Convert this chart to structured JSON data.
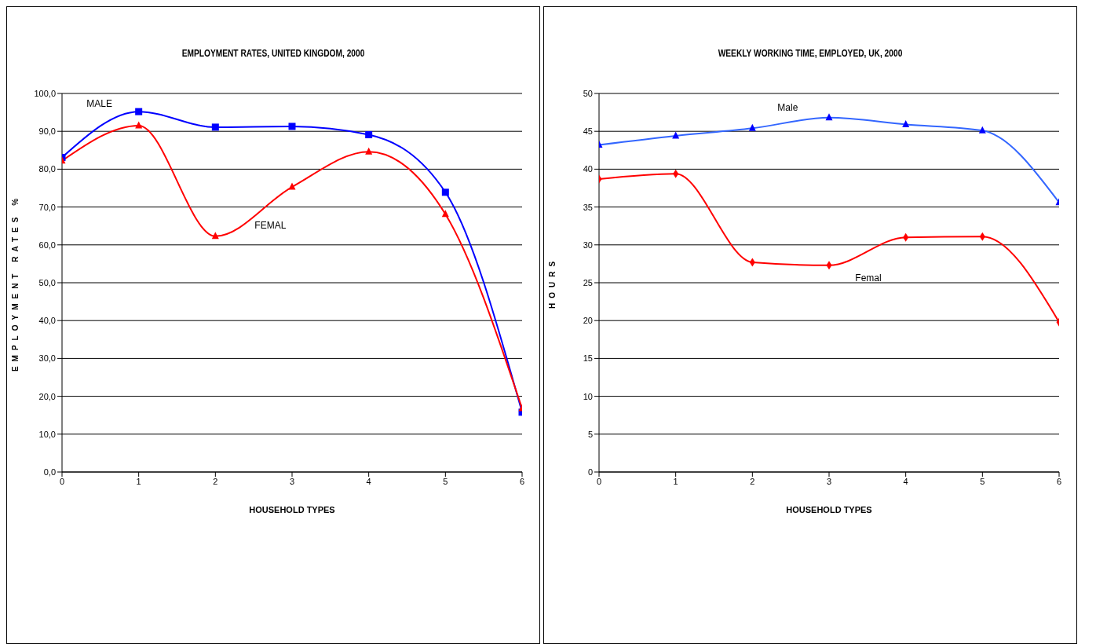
{
  "chart_data": [
    {
      "type": "line",
      "title": "EMPLOYMENT RATES, UNITED KINGDOM, 2000",
      "xlabel": "HOUSEHOLD TYPES",
      "ylabel": "EMPLOYMENT RATES %",
      "x": [
        0,
        1,
        2,
        3,
        4,
        5,
        6
      ],
      "xlim": [
        0,
        6
      ],
      "xticks": [
        0,
        1,
        2,
        3,
        4,
        5,
        6
      ],
      "ylim": [
        0,
        100
      ],
      "yticks": [
        {
          "value": 0,
          "label": "0,0"
        },
        {
          "value": 10,
          "label": "10,0"
        },
        {
          "value": 20,
          "label": "20,0"
        },
        {
          "value": 30,
          "label": "30,0"
        },
        {
          "value": 40,
          "label": "40,0"
        },
        {
          "value": 50,
          "label": "50,0"
        },
        {
          "value": 60,
          "label": "60,0"
        },
        {
          "value": 70,
          "label": "70,0"
        },
        {
          "value": 80,
          "label": "80,0"
        },
        {
          "value": 90,
          "label": "90,0"
        },
        {
          "value": 100,
          "label": "100,0"
        }
      ],
      "grid": "y",
      "legend": false,
      "series": [
        {
          "name": "MALE",
          "color": "#0000ff",
          "marker": "square",
          "values": [
            83.1,
            95.2,
            91.1,
            91.3,
            89.1,
            73.9,
            15.8
          ]
        },
        {
          "name": "FEMAL",
          "color": "#ff0000",
          "marker": "triangle",
          "values": [
            82.2,
            91.5,
            62.3,
            75.3,
            84.6,
            68.1,
            16.8
          ]
        }
      ]
    },
    {
      "type": "line",
      "title": "WEEKLY WORKING TIME, EMPLOYED, UK, 2000",
      "xlabel": "HOUSEHOLD TYPES",
      "ylabel": "HOURS",
      "x": [
        0,
        1,
        2,
        3,
        4,
        5,
        6
      ],
      "xlim": [
        0,
        6
      ],
      "xticks": [
        0,
        1,
        2,
        3,
        4,
        5,
        6
      ],
      "ylim": [
        0,
        50
      ],
      "yticks": [
        0,
        5,
        10,
        15,
        20,
        25,
        30,
        35,
        40,
        45,
        50
      ],
      "grid": "y",
      "legend": false,
      "series": [
        {
          "name": "Male",
          "color": "#3366ff",
          "marker": "triangle",
          "values": [
            43.2,
            44.4,
            45.4,
            46.8,
            45.9,
            45.1,
            35.6
          ]
        },
        {
          "name": "Femal",
          "color": "#ff0000",
          "marker": "diamond",
          "values": [
            38.7,
            39.4,
            27.7,
            27.3,
            31.0,
            31.1,
            19.8
          ]
        }
      ]
    }
  ]
}
